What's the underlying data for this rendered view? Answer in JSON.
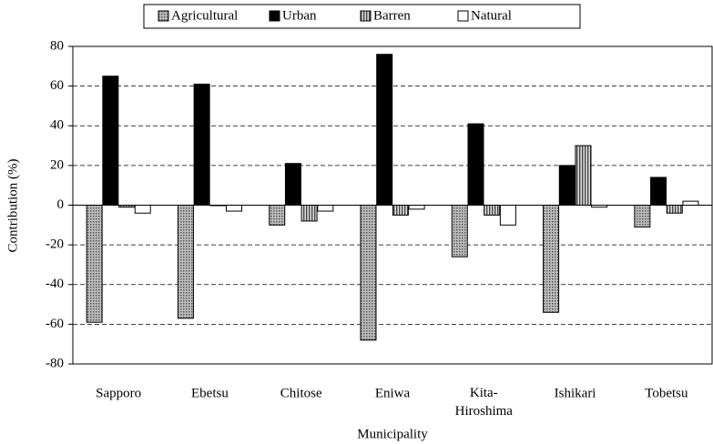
{
  "chart_data": {
    "type": "bar",
    "x_label": "Municipality",
    "y_label": "Contribution (%)",
    "categories": [
      "Sapporo",
      "Ebetsu",
      "Chitose",
      "Eniwa",
      "Kita-Hiroshima",
      "Ishikari",
      "Tobetsu"
    ],
    "series": [
      {
        "name": "Agricultural",
        "color": "#9a9a9a",
        "values": [
          -59,
          -57,
          -10,
          -68,
          -26,
          -54,
          -11
        ]
      },
      {
        "name": "Urban",
        "color": "#000000",
        "values": [
          65,
          61,
          21,
          76,
          41,
          20,
          14
        ]
      },
      {
        "name": "Barren",
        "color": "#b0b0b0",
        "values": [
          -1,
          0,
          -8,
          -5,
          -5,
          30,
          -4
        ]
      },
      {
        "name": "Natural",
        "color": "#ffffff",
        "values": [
          -4,
          -3,
          -3,
          -2,
          -10,
          -1,
          2
        ]
      }
    ],
    "ylim": [
      -80,
      80
    ],
    "yticks": [
      -80,
      -60,
      -40,
      -20,
      0,
      20,
      40,
      60,
      80
    ],
    "grid": true,
    "legend": "top"
  }
}
